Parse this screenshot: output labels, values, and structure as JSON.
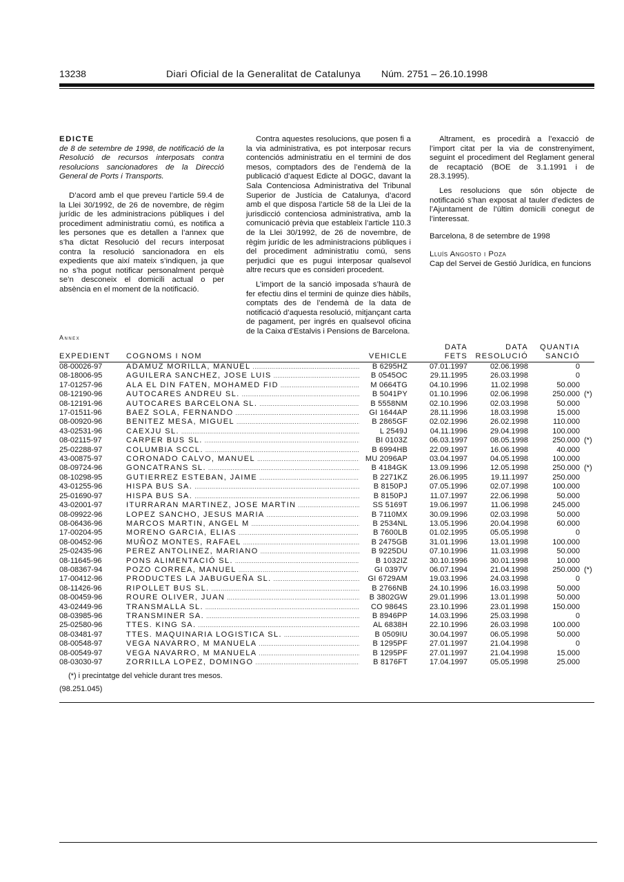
{
  "header": {
    "page_number": "13238",
    "journal": "Diari Oficial de la Generalitat de Catalunya",
    "issue": "Núm. 2751 – 26.10.1998"
  },
  "edicte": {
    "title": "EDICTE",
    "subtitle": "de 8 de setembre de 1998, de notificació de la Resolució de recursos interposats contra resolucions sancionadores de la Direcció General de Ports i Transports.",
    "paragraphs": [
      "D’acord amb el que preveu l’article 59.4 de la Llei 30/1992, de 26 de novembre, de règim jurídic de les administracions públiques i del procediment administratiu comú, es notifica a les persones que es detallen a l’annex que s’ha dictat Resolució del recurs interposat contra la resolució sancionadora en els expedients que així mateix s’indiquen, ja que no s’ha pogut notificar personalment perquè se’n desconeix el domicili actual o per absència en el moment de la notificació.",
      "Contra aquestes resolucions, que posen fi a la via administrativa, es pot interposar recurs contenciós administratiu en el termini de dos mesos, comptadors des de l’endemà de la publicació d’aquest Edicte al DOGC, davant la Sala Contenciosa Administrativa del Tribunal Superior de Justícia de Catalunya, d’acord amb el que disposa l’article 58 de la Llei de la jurisdicció contenciosa administrativa, amb la comunicació prèvia que estableix l’article 110.3 de la Llei 30/1992, de 26 de novembre, de règim jurídic de les administracions públiques i del procediment administratiu comú, sens perjudici que es pugui interposar qualsevol altre recurs que es consideri procedent.",
      "L’import de la sanció imposada s’haurà de fer efectiu dins el termini de quinze dies hàbils, comptats des de l’endemà de la data de notificació d’aquesta resolució, mitjançant carta de pagament, per ingrés en qualsevol oficina de la Caixa d’Estalvis i Pensions de Barcelona.",
      "Altrament, es procedirà a l’exacció de l’import citat per la via de constrenyiment, seguint el procediment del Reglament general de recaptació (BOE de 3.1.1991 i de 28.3.1995).",
      "Les resolucions que són objecte de notificació s’han exposat al tauler d’edictes de l’Ajuntament de l’últim domicili conegut de l’interessat."
    ],
    "place_date": "Barcelona, 8 de setembre de 1998",
    "signatory": "Lluís Angosto i Poza",
    "signatory_role": "Cap del Servei de Gestió Jurídica, en funcions"
  },
  "annex": {
    "title": "Annex",
    "columns": {
      "expedient": "EXPEDIENT",
      "name": "COGNOMS I NOM",
      "vehicle": "VEHICLE",
      "data_fets_1": "DATA",
      "data_fets_2": "FETS",
      "data_res_1": "DATA",
      "data_res_2": "RESOLUCIÓ",
      "quantia_1": "QUANTIA",
      "quantia_2": "SANCIÓ"
    },
    "rows": [
      [
        "08-00026-97",
        "ADAMUZ MORILLA, MANUEL",
        "B 6295HZ",
        "07.01.1997",
        "02.06.1998",
        "0",
        ""
      ],
      [
        "08-18006-95",
        "AGUILERA SANCHEZ, JOSE LUIS",
        "B 0545OC",
        "29.11.1995",
        "26.03.1998",
        "0",
        ""
      ],
      [
        "17-01257-96",
        "ALA EL DIN FATEN, MOHAMED FID",
        "M 0664TG",
        "04.10.1996",
        "11.02.1998",
        "50.000",
        ""
      ],
      [
        "08-12190-96",
        "AUTOCARES ANDREU SL.",
        "B 5041PY",
        "01.10.1996",
        "02.06.1998",
        "250.000",
        "(*)"
      ],
      [
        "08-12191-96",
        "AUTOCARES BARCELONA SL.",
        "B 5558NM",
        "02.10.1996",
        "02.03.1998",
        "50.000",
        ""
      ],
      [
        "17-01511-96",
        "BAEZ SOLA, FERNANDO",
        "GI 1644AP",
        "28.11.1996",
        "18.03.1998",
        "15.000",
        ""
      ],
      [
        "08-00920-96",
        "BENITEZ MESA, MIGUEL",
        "B 2865GF",
        "02.02.1996",
        "26.02.1998",
        "110.000",
        ""
      ],
      [
        "43-02531-96",
        "CAEXJU SL.",
        "L 2549J",
        "04.11.1996",
        "29.04.1998",
        "100.000",
        ""
      ],
      [
        "08-02115-97",
        "CARPER BUS SL.",
        "BI 0103Z",
        "06.03.1997",
        "08.05.1998",
        "250.000",
        "(*)"
      ],
      [
        "25-02288-97",
        "COLUMBIA SCCL.",
        "B 6994HB",
        "22.09.1997",
        "16.06.1998",
        "40.000",
        ""
      ],
      [
        "43-00875-97",
        "CORONADO CALVO, MANUEL",
        "MU 2096AP",
        "03.04.1997",
        "04.05.1998",
        "100.000",
        ""
      ],
      [
        "08-09724-96",
        "GONCATRANS SL.",
        "B 4184GK",
        "13.09.1996",
        "12.05.1998",
        "250.000",
        "(*)"
      ],
      [
        "08-10298-95",
        "GUTIERREZ ESTEBAN, JAIME",
        "B 2271KZ",
        "26.06.1995",
        "19.11.1997",
        "250.000",
        ""
      ],
      [
        "43-01255-96",
        "HISPA BUS SA.",
        "B 8150PJ",
        "07.05.1996",
        "02.07.1998",
        "100.000",
        ""
      ],
      [
        "25-01690-97",
        "HISPA BUS SA.",
        "B 8150PJ",
        "11.07.1997",
        "22.06.1998",
        "50.000",
        ""
      ],
      [
        "43-02001-97",
        "ITURRARAN MARTINEZ, JOSE MARTIN",
        "SS 5169T",
        "19.06.1997",
        "11.06.1998",
        "245.000",
        ""
      ],
      [
        "08-09922-96",
        "LOPEZ SANCHO, JESUS MARIA",
        "B 7110MX",
        "30.09.1996",
        "02.03.1998",
        "50.000",
        ""
      ],
      [
        "08-06436-96",
        "MARCOS MARTIN, ANGEL M",
        "B 2534NL",
        "13.05.1996",
        "20.04.1998",
        "60.000",
        ""
      ],
      [
        "17-00204-95",
        "MORENO GARCIA, ELIAS",
        "B 7600LB",
        "01.02.1995",
        "05.05.1998",
        "0",
        ""
      ],
      [
        "08-00452-96",
        "MUÑOZ MONTES, RAFAEL",
        "B 2475GB",
        "31.01.1996",
        "13.01.1998",
        "100.000",
        ""
      ],
      [
        "25-02435-96",
        "PEREZ ANTOLINEZ, MARIANO",
        "B 9225DU",
        "07.10.1996",
        "11.03.1998",
        "50.000",
        ""
      ],
      [
        "08-11645-96",
        "PONS ALIMENTACIÓ SL.",
        "B 1032IZ",
        "30.10.1996",
        "30.01.1998",
        "10.000",
        ""
      ],
      [
        "08-08367-94",
        "POZO CORREA, MANUEL",
        "GI 0397V",
        "06.07.1994",
        "21.04.1998",
        "250.000",
        "(*)"
      ],
      [
        "17-00412-96",
        "PRODUCTES LA JABUGUEÑA SL.",
        "GI 6729AM",
        "19.03.1996",
        "24.03.1998",
        "0",
        ""
      ],
      [
        "08-11426-96",
        "RIPOLLET BUS SL.",
        "B 2766NB",
        "24.10.1996",
        "16.03.1998",
        "50.000",
        ""
      ],
      [
        "08-00459-96",
        "ROURE OLIVER, JUAN",
        "B 3802GW",
        "29.01.1996",
        "13.01.1998",
        "50.000",
        ""
      ],
      [
        "43-02449-96",
        "TRANSMALLA SL.",
        "CO 9864S",
        "23.10.1996",
        "23.01.1998",
        "150.000",
        ""
      ],
      [
        "08-03985-96",
        "TRANSMINER SA.",
        "B 8946PP",
        "14.03.1996",
        "25.03.1998",
        "0",
        ""
      ],
      [
        "25-02580-96",
        "TTES. KING SA.",
        "AL 6838H",
        "22.10.1996",
        "26.03.1998",
        "100.000",
        ""
      ],
      [
        "08-03481-97",
        "TTES. MAQUINARIA LOGISTICA SL.",
        "B 0509IU",
        "30.04.1997",
        "06.05.1998",
        "50.000",
        ""
      ],
      [
        "08-00548-97",
        "VEGA NAVARRO, M MANUELA",
        "B 1295PF",
        "27.01.1997",
        "21.04.1998",
        "0",
        ""
      ],
      [
        "08-00549-97",
        "VEGA NAVARRO, M MANUELA",
        "B 1295PF",
        "27.01.1997",
        "21.04.1998",
        "15.000",
        ""
      ],
      [
        "08-03030-97",
        "ZORRILLA LOPEZ, DOMINGO",
        "B 8176FT",
        "17.04.1997",
        "05.05.1998",
        "25.000",
        ""
      ]
    ],
    "note": "(*) i precintatge del vehicle durant tres mesos.",
    "reference": "(98.251.045)"
  }
}
